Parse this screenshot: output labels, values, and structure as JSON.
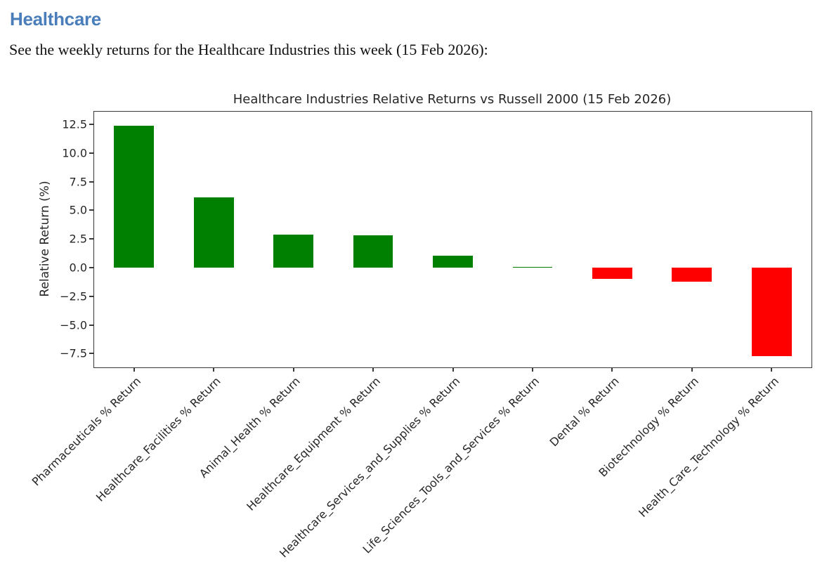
{
  "page": {
    "heading": "Healthcare",
    "heading_color": "#4a7ebb",
    "subtitle": "See the weekly returns for the Healthcare Industries this week (15 Feb 2026):"
  },
  "chart_data": {
    "type": "bar",
    "title": "Healthcare Industries Relative Returns vs Russell 2000 (15 Feb 2026)",
    "xlabel": "",
    "ylabel": "Relative Return (%)",
    "categories": [
      "Pharmaceuticals % Return",
      "Healthcare_Facilities % Return",
      "Animal_Health % Return",
      "Healthcare_Equipment % Return",
      "Healthcare_Services_and_Supplies % Return",
      "Life_Sciences_Tools_and_Services % Return",
      "Dental % Return",
      "Biotechnology % Return",
      "Health_Care_Technology % Return"
    ],
    "values": [
      12.4,
      6.1,
      2.9,
      2.8,
      1.05,
      0.08,
      -1.0,
      -1.25,
      -7.7
    ],
    "positive_color": "#008000",
    "negative_color": "#ff0000",
    "yticks": [
      12.5,
      10.0,
      7.5,
      5.0,
      2.5,
      0.0,
      -2.5,
      -5.0,
      -7.5
    ],
    "ytick_labels": [
      "12.5",
      "10.0",
      "7.5",
      "5.0",
      "2.5",
      "0.0",
      "−2.5",
      "−5.0",
      "−7.5"
    ],
    "ylim": [
      -8.7,
      13.6
    ],
    "bar_width_fraction": 0.5,
    "grid": false,
    "legend": null,
    "axis_color": "#3a3a3a"
  }
}
